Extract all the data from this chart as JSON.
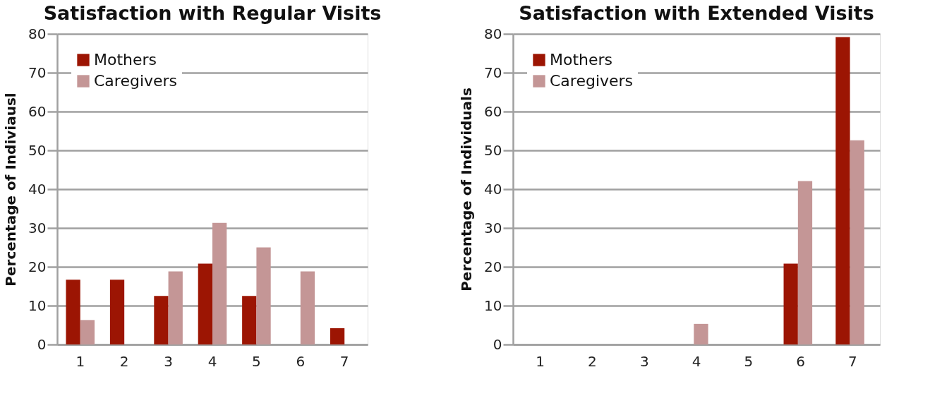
{
  "chart_data": [
    {
      "type": "bar",
      "title": "Satisfaction with Regular Visits",
      "ylabel": "Percentage of Indiviausl",
      "categories": [
        "1",
        "2",
        "3",
        "4",
        "5",
        "6",
        "7"
      ],
      "series": [
        {
          "name": "Mothers",
          "color": "#9c1503",
          "values": [
            16.7,
            16.7,
            12.5,
            20.8,
            12.5,
            0,
            4.2
          ]
        },
        {
          "name": "Caregivers",
          "color": "#c49696",
          "values": [
            6.3,
            0,
            18.8,
            31.3,
            25,
            18.8,
            0
          ]
        }
      ],
      "ylim": [
        0,
        80
      ],
      "yticks": [
        0,
        10,
        20,
        30,
        40,
        50,
        60,
        70,
        80
      ],
      "grid": "y",
      "legend": "top left"
    },
    {
      "type": "bar",
      "title": "Satisfaction with Extended Visits",
      "ylabel": "Percentage of Individuals",
      "categories": [
        "1",
        "2",
        "3",
        "4",
        "5",
        "6",
        "7"
      ],
      "series": [
        {
          "name": "Mothers",
          "color": "#9c1503",
          "values": [
            0,
            0,
            0,
            0,
            0,
            20.8,
            79.2
          ]
        },
        {
          "name": "Caregivers",
          "color": "#c49696",
          "values": [
            0,
            0,
            0,
            5.3,
            0,
            42.1,
            52.6
          ]
        }
      ],
      "ylim": [
        0,
        80
      ],
      "yticks": [
        0,
        10,
        20,
        30,
        40,
        50,
        60,
        70,
        80
      ],
      "grid": "y",
      "legend": "top left"
    }
  ]
}
